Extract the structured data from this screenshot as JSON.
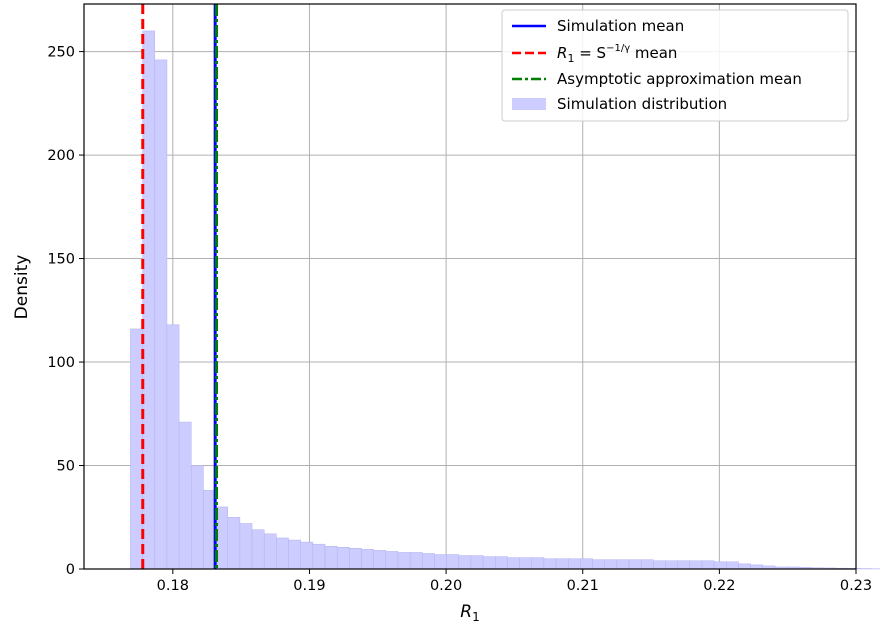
{
  "chart_data": {
    "type": "bar",
    "xlabel_main": "R",
    "xlabel_sub": "1",
    "ylabel": "Density",
    "xlim": [
      0.1735,
      0.23
    ],
    "ylim": [
      0,
      273
    ],
    "xticks": [
      0.18,
      0.19,
      0.2,
      0.21,
      0.22,
      0.23
    ],
    "xtick_labels": [
      "0.18",
      "0.19",
      "0.20",
      "0.21",
      "0.22",
      "0.23"
    ],
    "yticks": [
      0,
      50,
      100,
      150,
      200,
      250
    ],
    "ytick_labels": [
      "0",
      "50",
      "100",
      "150",
      "200",
      "250"
    ],
    "grid": true,
    "legend_position": "top-right",
    "histogram": {
      "name": "Simulation distribution",
      "color": "#ccccff",
      "edge_color": "#b3b3f2",
      "bin_start": 0.1769,
      "bin_width": 0.00089,
      "densities": [
        116,
        260,
        246,
        118,
        71,
        50,
        38,
        30,
        25,
        22,
        19,
        17,
        15,
        14,
        13,
        12,
        11,
        10.5,
        10,
        9.5,
        9,
        8.5,
        8,
        8,
        7.5,
        7,
        7,
        6.5,
        6.5,
        6,
        6,
        5.5,
        5.5,
        5.5,
        5,
        5,
        5,
        5,
        4.5,
        4.5,
        4.5,
        4.5,
        4.5,
        4,
        4,
        4,
        4,
        4,
        3.5,
        3.5,
        2.5,
        2,
        1.5,
        1,
        1,
        0.8,
        0.6,
        0.5,
        0.4,
        0.3,
        0.2,
        0.1,
        0.1,
        0.05
      ]
    },
    "lines": [
      {
        "name": "Simulation mean",
        "x": 0.1831,
        "color": "#0000ff",
        "style": "solid"
      },
      {
        "name": "R₁ = S^(−1/γ) mean",
        "x": 0.1778,
        "color": "#ff0000",
        "style": "dashed"
      },
      {
        "name": "Asymptotic approximation mean",
        "x": 0.1832,
        "color": "#008000",
        "style": "dashdot"
      }
    ],
    "legend": [
      {
        "label": "Simulation mean",
        "kind": "line",
        "color": "#0000ff",
        "style": "solid"
      },
      {
        "label_main": "R",
        "label_sub": "1",
        "label_eq": " = S",
        "label_sup": "−1/γ",
        "label_tail": " mean",
        "kind": "line",
        "color": "#ff0000",
        "style": "dashed"
      },
      {
        "label": "Asymptotic approximation mean",
        "kind": "line",
        "color": "#008000",
        "style": "dashdot"
      },
      {
        "label": "Simulation distribution",
        "kind": "patch",
        "color": "#ccccff"
      }
    ]
  }
}
